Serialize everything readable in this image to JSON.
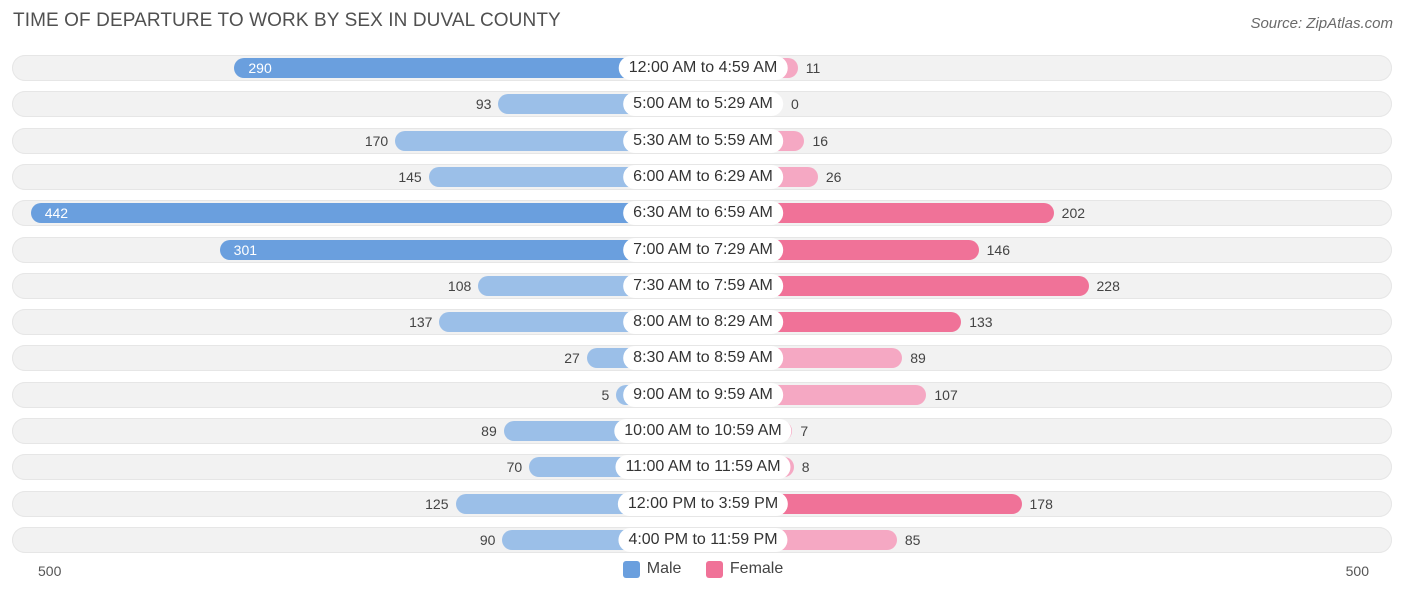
{
  "chart_data": {
    "type": "bar",
    "orientation": "horizontal-diverging",
    "title": "TIME OF DEPARTURE TO WORK BY SEX IN DUVAL COUNTY",
    "source": "Source: ZipAtlas.com",
    "categories": [
      "12:00 AM to 4:59 AM",
      "5:00 AM to 5:29 AM",
      "5:30 AM to 5:59 AM",
      "6:00 AM to 6:29 AM",
      "6:30 AM to 6:59 AM",
      "7:00 AM to 7:29 AM",
      "7:30 AM to 7:59 AM",
      "8:00 AM to 8:29 AM",
      "8:30 AM to 8:59 AM",
      "9:00 AM to 9:59 AM",
      "10:00 AM to 10:59 AM",
      "11:00 AM to 11:59 AM",
      "12:00 PM to 3:59 PM",
      "4:00 PM to 11:59 PM"
    ],
    "series": [
      {
        "name": "Male",
        "color": "#6a9fde",
        "light_color": "#9bbfe8",
        "values": [
          290,
          93,
          170,
          145,
          442,
          301,
          108,
          137,
          27,
          5,
          89,
          70,
          125,
          90
        ]
      },
      {
        "name": "Female",
        "color": "#f07298",
        "light_color": "#f5a8c3",
        "values": [
          11,
          0,
          16,
          26,
          202,
          146,
          228,
          133,
          89,
          107,
          7,
          8,
          178,
          85
        ]
      }
    ],
    "axis": {
      "left_label": "500",
      "right_label": "500",
      "max": 500
    },
    "legend": {
      "placement": "bottom-center",
      "items": [
        "Male",
        "Female"
      ]
    }
  }
}
